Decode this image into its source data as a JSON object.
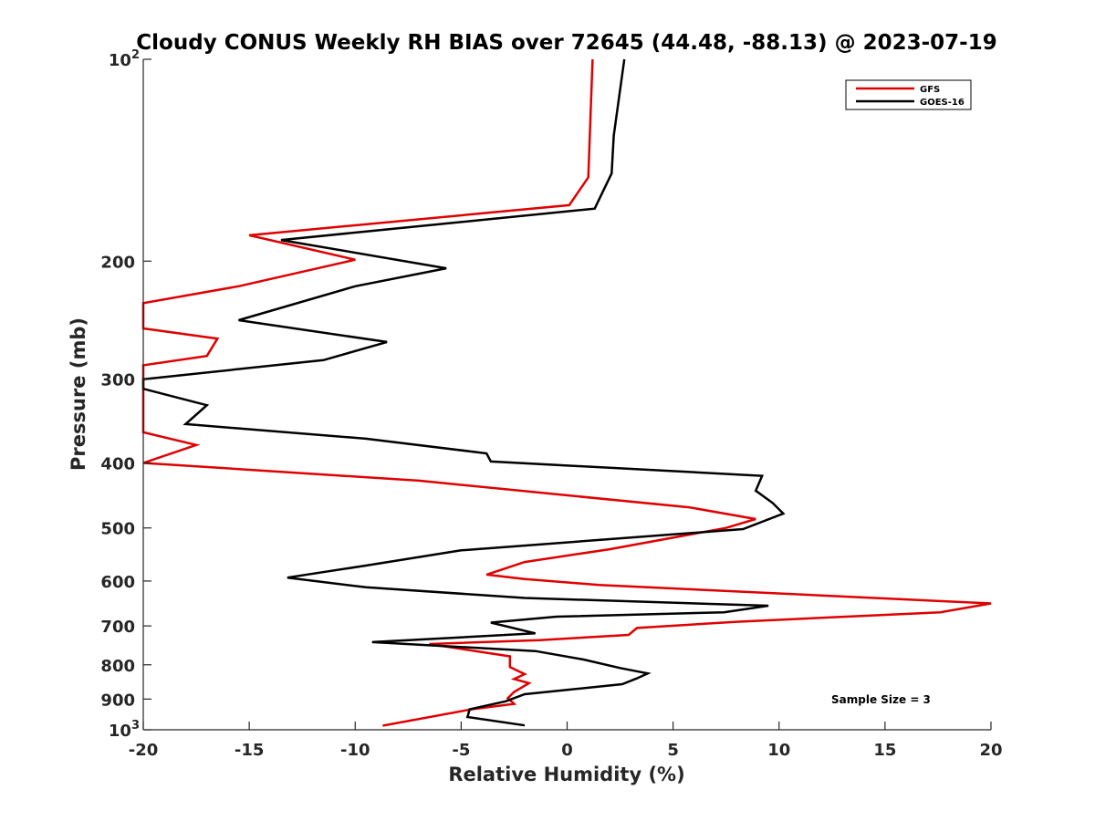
{
  "chart_data": {
    "type": "line",
    "title": "Cloudy CONUS Weekly RH BIAS over 72645 (44.48, -88.13) @ 2023-07-19",
    "xlabel": "Relative Humidity (%)",
    "ylabel": "Pressure (mb)",
    "xlim": [
      -20,
      20
    ],
    "ylim": [
      100,
      1000
    ],
    "y_scale": "log",
    "y_reversed": true,
    "x_ticks": [
      "-20",
      "-15",
      "-10",
      "-5",
      "0",
      "5",
      "10",
      "15",
      "20"
    ],
    "y_ticks": [
      {
        "value": 100,
        "base": "10",
        "exp": "2"
      },
      {
        "value": 200,
        "base": "200",
        "exp": ""
      },
      {
        "value": 300,
        "base": "300",
        "exp": ""
      },
      {
        "value": 400,
        "base": "400",
        "exp": ""
      },
      {
        "value": 500,
        "base": "500",
        "exp": ""
      },
      {
        "value": 600,
        "base": "600",
        "exp": ""
      },
      {
        "value": 700,
        "base": "700",
        "exp": ""
      },
      {
        "value": 800,
        "base": "800",
        "exp": ""
      },
      {
        "value": 900,
        "base": "900",
        "exp": ""
      },
      {
        "value": 1000,
        "base": "10",
        "exp": "3"
      }
    ],
    "grid": false,
    "legend_position": "top-right",
    "annotation": "Sample Size = 3",
    "series": [
      {
        "name": "GFS",
        "color": "#e00000",
        "points": [
          [
            1.2,
            100
          ],
          [
            1.0,
            150
          ],
          [
            0.1,
            165
          ],
          [
            -15.0,
            183
          ],
          [
            -10.0,
            199
          ],
          [
            -15.5,
            218
          ],
          [
            -20.0,
            231
          ],
          [
            -20.0,
            252
          ],
          [
            -16.5,
            261
          ],
          [
            -17.0,
            277
          ],
          [
            -20.0,
            286
          ],
          [
            -20.0,
            360
          ],
          [
            -17.5,
            376
          ],
          [
            -20.0,
            400
          ],
          [
            -7.0,
            425
          ],
          [
            5.8,
            466
          ],
          [
            8.9,
            485
          ],
          [
            7.5,
            500
          ],
          [
            2.0,
            538
          ],
          [
            -2.0,
            562
          ],
          [
            -3.8,
            587
          ],
          [
            -2.0,
            596
          ],
          [
            1.5,
            608
          ],
          [
            20.0,
            648
          ],
          [
            17.6,
            668
          ],
          [
            8.0,
            690
          ],
          [
            3.3,
            705
          ],
          [
            2.9,
            722
          ],
          [
            -1.3,
            735
          ],
          [
            -6.5,
            745
          ],
          [
            -2.7,
            777
          ],
          [
            -2.7,
            806
          ],
          [
            -2.0,
            826
          ],
          [
            -2.5,
            840
          ],
          [
            -1.8,
            852
          ],
          [
            -2.5,
            878
          ],
          [
            -2.8,
            897
          ],
          [
            -2.5,
            915
          ],
          [
            -4.5,
            932
          ],
          [
            -8.7,
            986
          ]
        ]
      },
      {
        "name": "GOES-16",
        "color": "#000000",
        "points": [
          [
            2.7,
            100
          ],
          [
            2.2,
            130
          ],
          [
            2.1,
            148
          ],
          [
            1.3,
            167
          ],
          [
            -13.5,
            186
          ],
          [
            -5.7,
            205
          ],
          [
            -10.0,
            218
          ],
          [
            -15.5,
            245
          ],
          [
            -8.5,
            264
          ],
          [
            -11.5,
            281
          ],
          [
            -20.0,
            300
          ],
          [
            -20.0,
            310
          ],
          [
            -17.0,
            328
          ],
          [
            -18.0,
            350
          ],
          [
            -9.5,
            368
          ],
          [
            -3.8,
            387
          ],
          [
            -3.6,
            398
          ],
          [
            9.2,
            418
          ],
          [
            8.9,
            440
          ],
          [
            9.7,
            459
          ],
          [
            10.2,
            476
          ],
          [
            8.3,
            502
          ],
          [
            -5.0,
            540
          ],
          [
            -9.5,
            569
          ],
          [
            -13.2,
            593
          ],
          [
            -9.5,
            613
          ],
          [
            -2.0,
            636
          ],
          [
            9.5,
            653
          ],
          [
            7.4,
            668
          ],
          [
            -0.5,
            678
          ],
          [
            -3.6,
            692
          ],
          [
            -1.5,
            718
          ],
          [
            -9.2,
            740
          ],
          [
            -1.5,
            763
          ],
          [
            0.8,
            786
          ],
          [
            2.5,
            809
          ],
          [
            3.8,
            824
          ],
          [
            3.3,
            838
          ],
          [
            2.6,
            855
          ],
          [
            -2.0,
            885
          ],
          [
            -2.9,
            907
          ],
          [
            -4.6,
            932
          ],
          [
            -4.7,
            957
          ],
          [
            -2.0,
            985
          ]
        ]
      }
    ]
  }
}
